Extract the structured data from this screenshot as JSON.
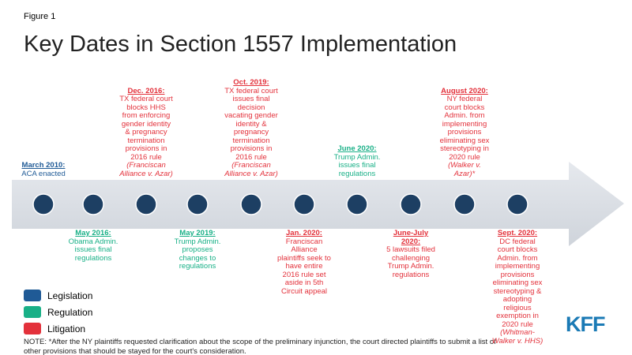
{
  "figure_label": "Figure 1",
  "title": "Key Dates in Section 1557 Implementation",
  "events": [
    {
      "date": "March 2010:",
      "text": "ACA enacted",
      "color": "#1f5a96"
    },
    {
      "date": "May 2016:",
      "text": "Obama Admin. issues final regulations",
      "color": "#19b087"
    },
    {
      "date": "Dec. 2016:",
      "text": "TX federal court blocks HHS from enforcing gender identity & pregnancy termination provisions in 2016 rule",
      "case": "(Franciscan Alliance v. Azar)",
      "color": "#e3313b"
    },
    {
      "date": "May 2019:",
      "text": "Trump Admin. proposes changes to regulations",
      "color": "#19b087"
    },
    {
      "date": "Oct. 2019:",
      "text": "TX federal court issues final decision vacating gender identity & pregnancy termination provisions in 2016 rule",
      "case": "(Franciscan Alliance v. Azar)",
      "color": "#e3313b"
    },
    {
      "date": "Jan. 2020:",
      "text": "Franciscan Alliance plaintiffs seek to have entire 2016 rule set aside in 5th Circuit appeal",
      "color": "#e3313b"
    },
    {
      "date": "June 2020:",
      "text": "Trump Admin. issues final regulations",
      "color": "#19b087"
    },
    {
      "date": "June-July 2020:",
      "text": "5 lawsuits filed challenging Trump Admin. regulations",
      "color": "#e3313b"
    },
    {
      "date": "August 2020:",
      "text": "NY federal court blocks Admin. from implementing provisions eliminating sex stereotyping in 2020 rule",
      "case": "(Walker v. Azar)*",
      "color": "#e3313b"
    },
    {
      "date": "Sept. 2020:",
      "text": "DC federal court blocks Admin. from implementing provisions eliminating sex stereotyping & adopting religious exemption in 2020 rule",
      "case": "(Whitman-Walker v. HHS)",
      "color": "#e3313b"
    }
  ],
  "legend": [
    {
      "label": "Legislation",
      "color": "#1f5a96"
    },
    {
      "label": "Regulation",
      "color": "#19b087"
    },
    {
      "label": "Litigation",
      "color": "#e3313b"
    }
  ],
  "note": "NOTE: *After the NY plaintiffs requested clarification about the scope of the preliminary injunction, the court directed plaintiffs to submit a list of other provisions that should be stayed for the court's consideration.",
  "logo": "KFF"
}
